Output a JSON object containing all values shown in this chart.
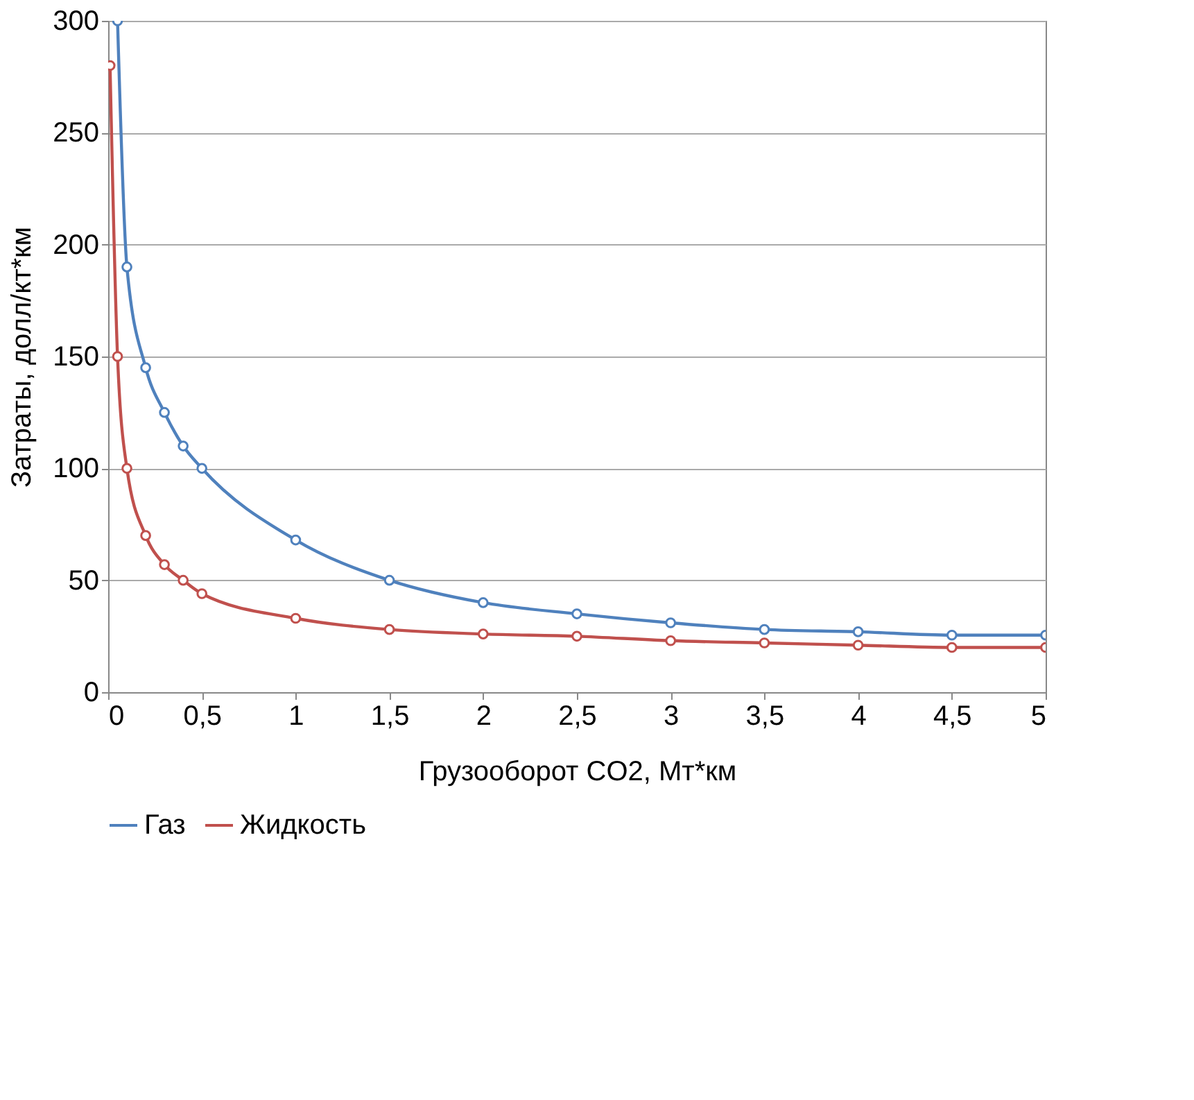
{
  "chart_data": {
    "type": "line",
    "xlabel": "Грузооборот CO2, Мт*км",
    "ylabel": "Затраты, долл/кт*км",
    "xlim": [
      0,
      5
    ],
    "xticks": [
      0,
      {
        "value": 0.5,
        "label": "0,5"
      },
      1,
      {
        "value": 1.5,
        "label": "1,5"
      },
      2,
      {
        "value": 2.5,
        "label": "2,5"
      },
      3,
      {
        "value": 3.5,
        "label": "3,5"
      },
      4,
      {
        "value": 4.5,
        "label": "4,5"
      },
      5
    ],
    "ylim": [
      0,
      300
    ],
    "yticks": [
      0,
      50,
      100,
      150,
      200,
      250,
      300
    ],
    "grid": "y",
    "legend": "bottom",
    "marker": "circle",
    "line_style": "solid",
    "series": [
      {
        "name": "Газ",
        "color": "#4f81bd",
        "x": [
          0.05,
          0.1,
          0.2,
          0.3,
          0.4,
          0.5,
          1,
          1.5,
          2,
          2.5,
          3,
          3.5,
          4,
          4.5,
          5
        ],
        "values": [
          300,
          190,
          145,
          125,
          110,
          100,
          68,
          50,
          40,
          35,
          31,
          28,
          27,
          25.5,
          25.5
        ]
      },
      {
        "name": "Жидкость",
        "color": "#c0504d",
        "x": [
          0.01,
          0.05,
          0.1,
          0.2,
          0.3,
          0.4,
          0.5,
          1,
          1.5,
          2,
          2.5,
          3,
          3.5,
          4,
          4.5,
          5
        ],
        "values": [
          280,
          150,
          100,
          70,
          57,
          50,
          44,
          33,
          28,
          26,
          25,
          23,
          22,
          21,
          20,
          20
        ]
      }
    ]
  }
}
